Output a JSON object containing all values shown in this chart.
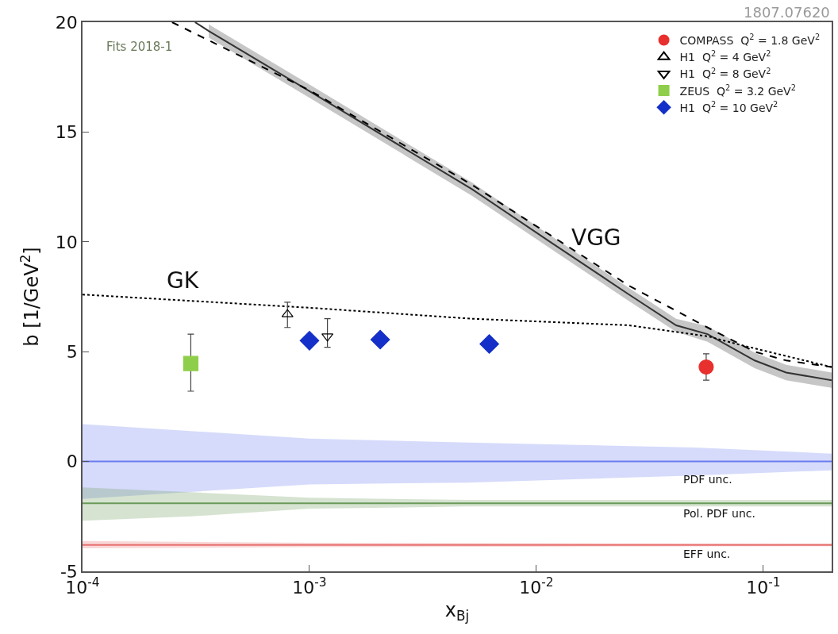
{
  "chart_data": {
    "type": "scatter",
    "xlabel": "x$_{Bj}$",
    "ylabel": "b [1/GeV$^{2}$]",
    "xlim": [
      0.0001,
      0.2
    ],
    "ylim": [
      -5,
      20
    ],
    "log": "x",
    "legend": "top right",
    "xticks": [
      {
        "value": 0.0001,
        "label": "10$^{-4}$"
      },
      {
        "value": 0.001,
        "label": "10$^{-3}$"
      },
      {
        "value": 0.01,
        "label": "10$^{-2}$"
      },
      {
        "value": 0.1,
        "label": "10$^{-1}$"
      }
    ],
    "yticks": [
      -5,
      0,
      5,
      10,
      15,
      20
    ],
    "annotations": [
      "Fits 2018-1",
      "1807.07620",
      "VGG",
      "GK",
      "PDF unc.",
      "Pol. PDF unc.",
      "EFF unc."
    ],
    "series": [
      {
        "type": "line",
        "color": "#6a7cf0",
        "x": [
          0.0001,
          0.001,
          0.005,
          0.05,
          0.2
        ],
        "values": [
          0,
          0,
          0,
          0,
          0
        ],
        "lower": [
          -1.7,
          -1.04,
          -0.96,
          -0.64,
          -0.4
        ],
        "upper": [
          1.7,
          1.04,
          0.86,
          0.64,
          0.36
        ]
      },
      {
        "type": "line",
        "color": "#6a9a5a",
        "x": [
          0.0001,
          0.0003,
          0.001,
          0.005,
          0.05,
          0.2
        ],
        "values": [
          -1.9,
          -1.9,
          -1.9,
          -1.9,
          -1.9,
          -1.9
        ],
        "lower": [
          -2.7,
          -2.5,
          -2.15,
          -2.05,
          -2.05,
          -2.05
        ],
        "upper": [
          -1.18,
          -1.4,
          -1.65,
          -1.75,
          -1.75,
          -1.75
        ]
      },
      {
        "type": "line",
        "color": "#e87070",
        "x": [
          0.0001,
          0.001,
          0.01,
          0.2
        ],
        "values": [
          -3.8,
          -3.8,
          -3.8,
          -3.8
        ],
        "lower": [
          -3.95,
          -3.9,
          -3.88,
          -3.86
        ],
        "upper": [
          -3.62,
          -3.7,
          -3.72,
          -3.74
        ]
      },
      {
        "type": "line",
        "color": "#333333",
        "line_style": "solid",
        "x": [
          0.000313,
          0.00036,
          0.001,
          0.0052,
          0.0115,
          0.0256,
          0.0413,
          0.0568,
          0.0916,
          0.126,
          0.2
        ],
        "values": [
          20,
          19.6,
          16.86,
          12.4,
          10.0,
          7.6,
          6.2,
          5.8,
          4.6,
          4.05,
          3.7
        ],
        "lower": [
          null,
          19.3,
          16.56,
          12.1,
          9.7,
          7.3,
          5.9,
          5.45,
          4.25,
          3.7,
          3.35
        ],
        "upper": [
          null,
          19.9,
          17.16,
          12.7,
          10.3,
          7.9,
          6.5,
          6.15,
          4.95,
          4.4,
          4.05
        ]
      },
      {
        "type": "line",
        "color": "#000000",
        "line_style": "dashed",
        "x": [
          0.000248,
          0.001,
          0.0052,
          0.0256,
          0.0568,
          0.0916,
          0.126,
          0.2
        ],
        "values": [
          20,
          16.9,
          12.6,
          8.0,
          6.1,
          5.0,
          4.6,
          4.3
        ]
      },
      {
        "type": "line",
        "color": "#000000",
        "line_style": "dotted",
        "x": [
          0.0001,
          0.001,
          0.0052,
          0.0256,
          0.0568,
          0.0835,
          0.2
        ],
        "values": [
          7.6,
          7.0,
          6.5,
          6.2,
          5.7,
          5.25,
          4.3
        ]
      },
      {
        "name": "COMPASS  Q$^{2}$ = 1.8 GeV$^{2}$",
        "color": "#e8302e",
        "marker": "circle",
        "x": [
          0.056
        ],
        "values": [
          4.3
        ],
        "errors": [
          [
            3.7,
            4.9
          ]
        ]
      },
      {
        "name": "H1  Q$^{2}$ = 4 GeV$^{2}$",
        "color": "#000000",
        "marker": "triangle-open",
        "x": [
          0.0008
        ],
        "values": [
          6.7
        ],
        "errors": [
          [
            6.1,
            7.25
          ]
        ]
      },
      {
        "name": "H1  Q$^{2}$ = 8 GeV$^{2}$",
        "color": "#000000",
        "marker": "triangle-down-open",
        "x": [
          0.0012
        ],
        "values": [
          5.7
        ],
        "errors": [
          [
            5.2,
            6.5
          ]
        ]
      },
      {
        "name": "ZEUS  Q$^{2}$ = 3.2 GeV$^{2}$",
        "color": "#8fce4a",
        "marker": "square",
        "x": [
          0.0003
        ],
        "values": [
          4.46
        ],
        "errors": [
          [
            3.2,
            5.8
          ]
        ]
      },
      {
        "name": "H1  Q$^{2}$ = 10 GeV$^{2}$",
        "color": "#1530c8",
        "marker": "diamond",
        "x": [
          0.001,
          0.00205,
          0.0062
        ],
        "values": [
          5.5,
          5.55,
          5.35
        ]
      }
    ]
  }
}
